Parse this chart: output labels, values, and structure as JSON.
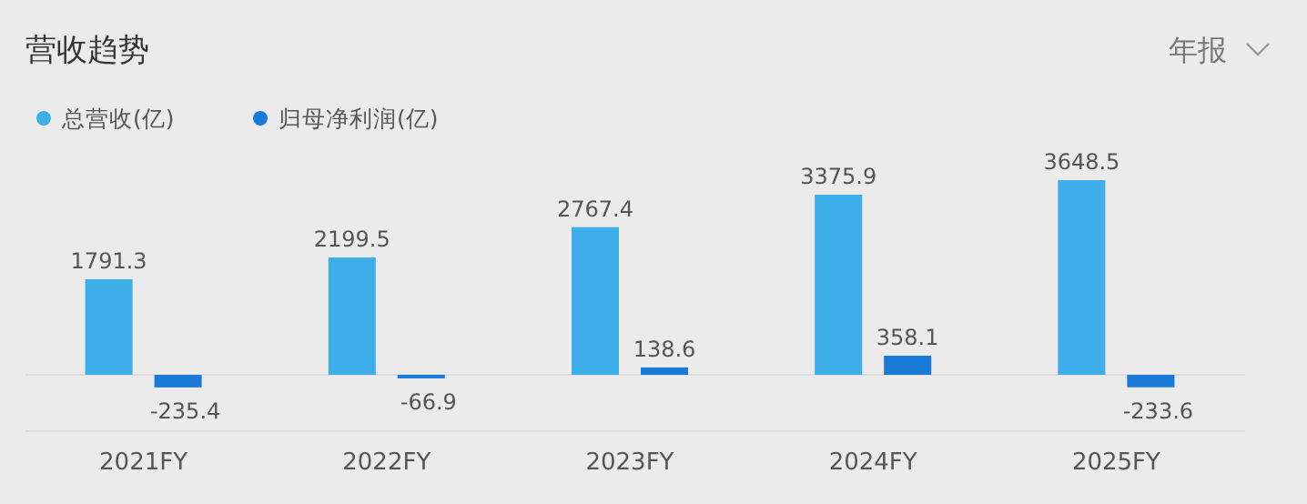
{
  "chart_data": {
    "type": "bar",
    "title": "营收趋势",
    "annotations": [
      "年报"
    ],
    "categories": [
      "2021FY",
      "2022FY",
      "2023FY",
      "2024FY",
      "2025FY"
    ],
    "series": [
      {
        "name": "总营收(亿)",
        "color": "#3daee9",
        "values": [
          1791.3,
          2199.5,
          2767.4,
          3375.9,
          3648.5
        ]
      },
      {
        "name": "归母净利润(亿)",
        "color": "#1a7ad8",
        "values": [
          -235.4,
          -66.9,
          138.6,
          358.1,
          -233.6
        ]
      }
    ],
    "data_labels": true,
    "legend": "top left",
    "marker": "circle",
    "grid": false
  }
}
